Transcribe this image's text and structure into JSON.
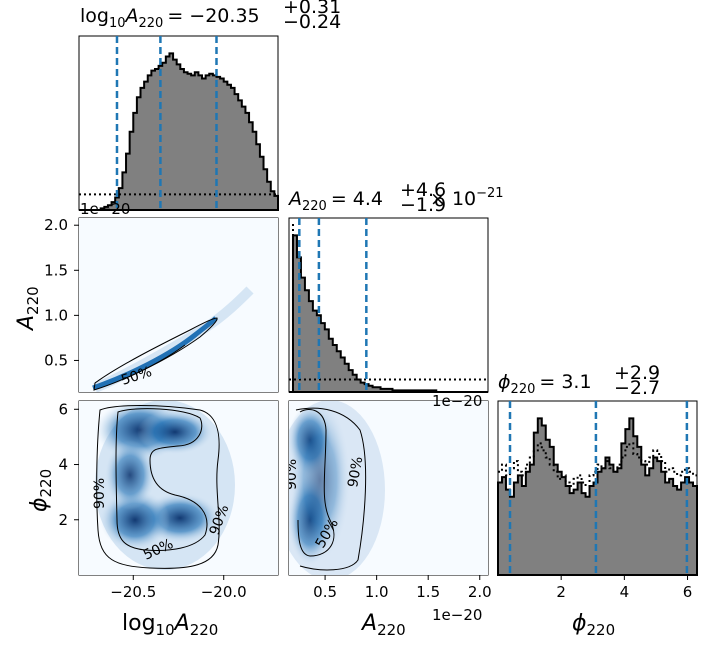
{
  "chart_data": {
    "type": "corner",
    "parameters": [
      {
        "key": "logA",
        "axis_label_main": "log",
        "axis_label_sub": "10",
        "axis_label_var": "A",
        "axis_label_var_sub": "220",
        "range": [
          -20.8,
          -19.7
        ],
        "ticks": [
          -20.5,
          -20.0
        ],
        "tick_labels": [
          "−20.5",
          "−20.0"
        ]
      },
      {
        "key": "A",
        "axis_label_var": "A",
        "axis_label_var_sub": "220",
        "range": [
          0.15,
          2.08
        ],
        "ticks": [
          0.5,
          1.0,
          1.5,
          2.0
        ],
        "tick_labels": [
          "0.5",
          "1.0",
          "1.5",
          "2.0"
        ],
        "offset_text": "1e−20"
      },
      {
        "key": "phi",
        "axis_label_var": "ϕ",
        "axis_label_var_sub": "220",
        "range": [
          0.0,
          6.3
        ],
        "ticks": [
          2,
          4,
          6
        ],
        "tick_labels": [
          "2",
          "4",
          "6"
        ]
      }
    ],
    "titles": [
      {
        "param": "logA",
        "lhs_main": "log",
        "lhs_sub": "10",
        "lhs_var": "A",
        "lhs_var_sub": "220",
        "value": "= −20.35",
        "plus": "+0.31",
        "minus": "−0.24"
      },
      {
        "param": "A",
        "lhs_var": "A",
        "lhs_var_sub": "220",
        "value": "= 4.4",
        "plus": "+4.6",
        "minus": "−1.9",
        "suffix": "× 10",
        "suffix_exp": "−21"
      },
      {
        "param": "phi",
        "lhs_var": "ϕ",
        "lhs_var_sub": "220",
        "value": "= 3.1",
        "plus": "+2.9",
        "minus": "−2.7"
      }
    ],
    "histograms": {
      "logA": {
        "bin_start": -20.8,
        "bin_width": 0.02,
        "counts": [
          0,
          0,
          0,
          0,
          0,
          0,
          1,
          2,
          3,
          5,
          8,
          14,
          24,
          36,
          50,
          62,
          72,
          78,
          82,
          86,
          89,
          90,
          92,
          94,
          98,
          100,
          96,
          93,
          90,
          88,
          87,
          86,
          88,
          86,
          84,
          86,
          87,
          86,
          85,
          84,
          82,
          80,
          78,
          74,
          70,
          66,
          62,
          56,
          50,
          42,
          34,
          26,
          18,
          12,
          9,
          7,
          6,
          5,
          4,
          3,
          3,
          2,
          2,
          1,
          1,
          1,
          1,
          1,
          0,
          0,
          0,
          0,
          0,
          0,
          0,
          0,
          0,
          0,
          0,
          0,
          0,
          0,
          0,
          0,
          0,
          0,
          0,
          0,
          0,
          0,
          0,
          0,
          0,
          0,
          0,
          0,
          0,
          0,
          0,
          0,
          0,
          0,
          0,
          0,
          0
        ],
        "prior": 10,
        "quantiles": [
          -20.59,
          -20.35,
          -20.04
        ]
      },
      "A": {
        "bin_start": 0.15,
        "bin_width": 0.0386,
        "counts": [
          0,
          100,
          86,
          73,
          65,
          58,
          52,
          49,
          44,
          40,
          34,
          30,
          26,
          22,
          18,
          14,
          11,
          8,
          6,
          5,
          4,
          3,
          3,
          2,
          2,
          2,
          1,
          1,
          1,
          1,
          1,
          1,
          1,
          1,
          1,
          1,
          1,
          0,
          0,
          0,
          0,
          0,
          0,
          0,
          0,
          0,
          0,
          0,
          0,
          0
        ],
        "prior": 8,
        "quantiles": [
          0.25,
          0.44,
          0.9
        ]
      },
      "phi": {
        "bin_start": 0.0,
        "bin_width": 0.126,
        "counts": [
          52,
          55,
          48,
          44,
          52,
          56,
          50,
          58,
          62,
          80,
          88,
          84,
          76,
          72,
          62,
          58,
          55,
          50,
          46,
          48,
          52,
          46,
          44,
          50,
          52,
          58,
          60,
          66,
          62,
          58,
          60,
          74,
          82,
          88,
          78,
          72,
          62,
          56,
          60,
          66,
          64,
          58,
          52,
          54,
          50,
          48,
          52,
          55,
          52,
          50
        ],
        "prior_series": [
          58,
          62,
          56,
          60,
          64,
          58,
          56,
          62,
          66,
          70,
          74,
          70,
          66,
          62,
          58,
          54,
          56,
          52,
          50,
          54,
          56,
          52,
          50,
          56,
          58,
          62,
          60,
          64,
          60,
          58,
          62,
          66,
          72,
          74,
          68,
          66,
          64,
          62,
          66,
          70,
          68,
          64,
          58,
          60,
          58,
          56,
          58,
          60,
          58,
          56
        ],
        "quantiles": [
          0.38,
          3.1,
          5.98
        ]
      }
    },
    "contour_labels": [
      "50%",
      "90%"
    ],
    "colors": {
      "hist_fill": "#808080",
      "hist_edge": "#000000",
      "quantile": "#1f77b4",
      "density": "#08519c",
      "prior": "#000000"
    }
  }
}
